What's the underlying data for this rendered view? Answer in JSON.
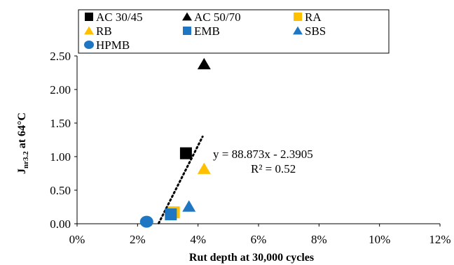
{
  "chart_data": {
    "type": "scatter",
    "xlabel": "Rut depth at 30,000 cycles",
    "ylabel_main": "J",
    "ylabel_sub": "nr3.2",
    "ylabel_rest": " at 64°C",
    "xlim": [
      0,
      12
    ],
    "ylim": [
      0,
      2.5
    ],
    "x_unit": "%",
    "x_ticks": [
      0,
      2,
      4,
      6,
      8,
      10,
      12
    ],
    "y_ticks": [
      0.0,
      0.5,
      1.0,
      1.5,
      2.0,
      2.5
    ],
    "x_tick_labels": [
      "0%",
      "2%",
      "4%",
      "6%",
      "8%",
      "10%",
      "12%"
    ],
    "y_tick_labels": [
      "0.00",
      "0.50",
      "1.00",
      "1.50",
      "2.00",
      "2.50"
    ],
    "grid": false,
    "legend_placement": "top",
    "series": [
      {
        "name": "AC 30/45",
        "marker": "square",
        "color": "#000000",
        "x": 3.6,
        "y": 1.05
      },
      {
        "name": "AC 50/70",
        "marker": "triangle",
        "color": "#000000",
        "x": 4.2,
        "y": 2.38
      },
      {
        "name": "RA",
        "marker": "square",
        "color": "#FFC000",
        "x": 3.2,
        "y": 0.17
      },
      {
        "name": "RB",
        "marker": "triangle",
        "color": "#FFC000",
        "x": 4.2,
        "y": 0.82
      },
      {
        "name": "EMB",
        "marker": "square",
        "color": "#1F77C4",
        "x": 3.1,
        "y": 0.14
      },
      {
        "name": "SBS",
        "marker": "triangle",
        "color": "#1F77C4",
        "x": 3.7,
        "y": 0.26
      },
      {
        "name": "HPMB",
        "marker": "circle",
        "color": "#1F77C4",
        "x": 2.3,
        "y": 0.03
      }
    ],
    "trendline": {
      "equation": "y = 88.873x - 2.3905",
      "r2": "R² = 0.52",
      "slope": 88.873,
      "intercept": -2.3905,
      "x_range": [
        2.7,
        4.15
      ],
      "style": "dotted",
      "color": "#000000"
    }
  }
}
